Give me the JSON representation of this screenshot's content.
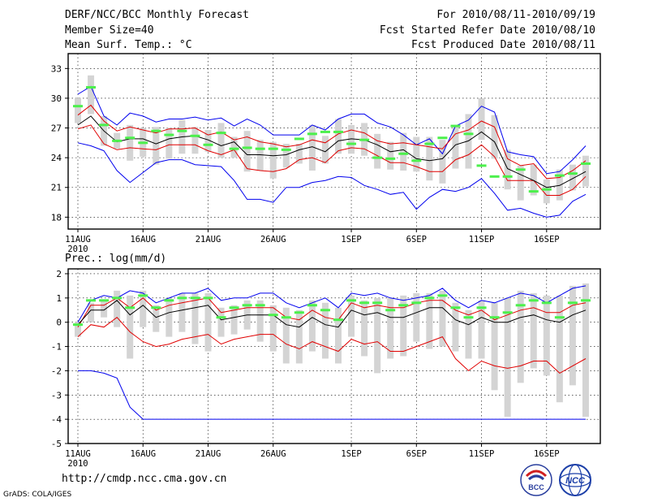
{
  "header": {
    "title": "DERF/NCC/BCC Monthly Forecast",
    "member_size": "Member Size=40",
    "variable": "Mean Surf. Temp.: °C",
    "period": "For 2010/08/11-2010/09/19",
    "fcst_started": "Fcst Started Refer Date 2010/08/10",
    "fcst_produced": "Fcst Produced Date 2010/08/11"
  },
  "footer": {
    "url": "http://cmdp.ncc.cma.gov.cn",
    "grads": "GrADS: COLA/IGES",
    "logo_bcc": "BCC",
    "logo_ncc": "NCC"
  },
  "colors": {
    "box": "#d4d4d4",
    "median": "#4cf04c",
    "mean": "#000000",
    "std_band": "#e00000",
    "extreme": "#0000ee"
  },
  "chart_data": [
    {
      "type": "line",
      "panel": "temperature",
      "title": "Mean Surf. Temp.: °C",
      "x_tick_labels": [
        "11AUG",
        "16AUG",
        "21AUG",
        "26AUG",
        "1SEP",
        "6SEP",
        "11SEP",
        "16SEP"
      ],
      "x_tick_days": [
        0,
        5,
        10,
        15,
        21,
        26,
        31,
        36
      ],
      "year_label": "2010",
      "ylim": [
        16.8,
        34.5
      ],
      "y_ticks": [
        18,
        21,
        24,
        27,
        30,
        33
      ],
      "y_tick_labels": [
        "18",
        "21",
        "24",
        "27",
        "30",
        "33"
      ],
      "grid": true,
      "days": 40,
      "max": [
        30.4,
        31.2,
        28.2,
        27.3,
        28.5,
        28.2,
        27.6,
        27.9,
        27.9,
        28.1,
        27.8,
        28.0,
        27.2,
        27.9,
        27.3,
        26.3,
        26.3,
        26.3,
        27.3,
        26.8,
        27.9,
        28.4,
        28.4,
        27.5,
        27.1,
        26.3,
        25.3,
        25.9,
        24.4,
        27.2,
        27.8,
        29.2,
        28.6,
        24.6,
        24.3,
        24.1,
        22.4,
        22.6,
        23.8,
        25.2
      ],
      "std_hi": [
        28.3,
        29.3,
        27.7,
        26.7,
        27.1,
        26.8,
        26.5,
        26.9,
        26.9,
        27.0,
        26.3,
        26.6,
        25.8,
        26.1,
        25.6,
        25.4,
        25.1,
        25.3,
        25.8,
        25.5,
        26.4,
        26.8,
        26.5,
        25.7,
        25.4,
        25.5,
        25.3,
        25.1,
        24.9,
        26.4,
        26.8,
        27.7,
        27.1,
        23.9,
        23.2,
        23.4,
        21.9,
        22.0,
        22.7,
        23.7
      ],
      "mean": [
        27.3,
        28.2,
        26.7,
        25.6,
        25.9,
        25.9,
        25.4,
        25.9,
        26.1,
        26.2,
        25.8,
        25.2,
        25.6,
        24.3,
        24.3,
        24.2,
        24.3,
        24.8,
        25.1,
        24.6,
        25.7,
        25.9,
        25.8,
        25.3,
        24.6,
        24.8,
        23.9,
        23.7,
        23.9,
        25.3,
        25.7,
        26.6,
        25.6,
        22.9,
        22.3,
        21.7,
        21.0,
        21.2,
        21.9,
        22.6
      ],
      "std_lo": [
        26.9,
        27.3,
        25.4,
        24.8,
        25.0,
        24.9,
        24.8,
        25.3,
        25.3,
        25.3,
        24.7,
        24.3,
        24.8,
        22.9,
        22.7,
        22.6,
        22.9,
        23.8,
        24.0,
        23.5,
        24.7,
        25.0,
        24.9,
        24.2,
        23.5,
        23.5,
        23.1,
        22.6,
        22.6,
        23.8,
        24.3,
        25.3,
        24.1,
        21.7,
        21.7,
        21.7,
        20.2,
        20.2,
        20.8,
        22.1
      ],
      "min": [
        25.5,
        25.2,
        24.7,
        22.7,
        21.5,
        22.5,
        23.5,
        23.8,
        23.8,
        23.3,
        23.2,
        23.1,
        21.7,
        19.8,
        19.8,
        19.5,
        21.0,
        21.0,
        21.5,
        21.7,
        22.1,
        22.0,
        21.2,
        20.8,
        20.3,
        20.5,
        18.8,
        20.0,
        20.8,
        20.6,
        21.0,
        21.9,
        20.4,
        18.7,
        18.9,
        18.4,
        18.0,
        18.2,
        19.6,
        20.3
      ],
      "box_lo": [
        27.5,
        28.4,
        25.2,
        24.9,
        23.7,
        24.1,
        23.3,
        23.9,
        24.4,
        24.4,
        24.6,
        24.0,
        24.0,
        22.6,
        22.7,
        21.9,
        23.0,
        23.4,
        22.7,
        23.4,
        24.4,
        24.4,
        24.2,
        22.9,
        22.8,
        22.7,
        22.6,
        21.7,
        21.4,
        22.9,
        22.9,
        25.8,
        23.9,
        20.8,
        19.7,
        20.2,
        19.4,
        19.7,
        20.7,
        21.1
      ],
      "box_hi": [
        30.0,
        32.3,
        28.2,
        26.5,
        27.3,
        27.0,
        27.1,
        27.0,
        27.8,
        27.1,
        26.8,
        27.5,
        26.1,
        26.7,
        25.8,
        25.6,
        25.4,
        25.4,
        27.3,
        26.2,
        27.9,
        27.3,
        27.5,
        26.4,
        25.6,
        26.5,
        26.1,
        26.1,
        25.8,
        27.3,
        28.4,
        30.0,
        28.3,
        24.8,
        23.2,
        23.3,
        21.8,
        22.8,
        23.3,
        24.2
      ],
      "median": [
        29.2,
        31.1,
        27.3,
        25.7,
        26.0,
        25.5,
        26.7,
        26.3,
        26.7,
        26.2,
        25.3,
        26.5,
        24.9,
        25.0,
        24.9,
        24.9,
        24.8,
        25.9,
        26.4,
        26.6,
        26.6,
        25.4,
        25.8,
        24.0,
        23.9,
        24.4,
        23.7,
        25.4,
        26.0,
        27.2,
        26.4,
        23.2,
        22.1,
        22.1,
        22.8,
        20.6,
        20.8,
        22.2,
        22.4,
        23.4
      ]
    },
    {
      "type": "line",
      "panel": "precipitation",
      "title": "Prec.: log(mm/d)",
      "x_tick_labels": [
        "11AUG",
        "16AUG",
        "21AUG",
        "26AUG",
        "1SEP",
        "6SEP",
        "11SEP",
        "16SEP"
      ],
      "x_tick_days": [
        0,
        5,
        10,
        15,
        21,
        26,
        31,
        36
      ],
      "year_label": "2010",
      "ylim": [
        -5,
        2.2
      ],
      "y_ticks": [
        -5,
        -4,
        -3,
        -2,
        -1,
        0,
        1,
        2
      ],
      "y_tick_labels": [
        "-5",
        "-4",
        "-3",
        "-2",
        "-1",
        "0",
        "1",
        "2"
      ],
      "grid": true,
      "days": 40,
      "max": [
        0.0,
        0.9,
        1.1,
        1.0,
        1.3,
        1.2,
        0.8,
        1.0,
        1.2,
        1.2,
        1.4,
        0.9,
        1.0,
        1.0,
        1.2,
        1.2,
        0.8,
        0.6,
        0.8,
        1.0,
        0.6,
        1.2,
        1.1,
        1.2,
        1.0,
        0.9,
        1.0,
        1.1,
        1.4,
        0.9,
        0.6,
        0.9,
        0.8,
        1.0,
        1.2,
        1.1,
        0.8,
        1.1,
        1.4,
        1.5
      ],
      "std_hi": [
        -0.2,
        0.7,
        0.7,
        1.0,
        0.6,
        1.0,
        0.5,
        0.7,
        0.8,
        0.9,
        1.0,
        0.4,
        0.5,
        0.6,
        0.6,
        0.6,
        0.2,
        0.1,
        0.5,
        0.2,
        0.1,
        0.8,
        0.6,
        0.7,
        0.6,
        0.6,
        0.8,
        0.9,
        0.9,
        0.5,
        0.3,
        0.5,
        0.1,
        0.3,
        0.5,
        0.6,
        0.4,
        0.4,
        0.7,
        0.8
      ],
      "mean": [
        -0.1,
        0.5,
        0.5,
        0.9,
        0.3,
        0.7,
        0.2,
        0.4,
        0.5,
        0.6,
        0.7,
        0.1,
        0.2,
        0.3,
        0.3,
        0.3,
        -0.1,
        -0.2,
        0.2,
        -0.1,
        -0.2,
        0.5,
        0.3,
        0.4,
        0.2,
        0.2,
        0.4,
        0.6,
        0.6,
        0.1,
        -0.1,
        0.2,
        0.0,
        0.0,
        0.2,
        0.3,
        0.1,
        0.0,
        0.3,
        0.5
      ],
      "std_lo": [
        -0.6,
        -0.1,
        -0.2,
        0.2,
        -0.4,
        -0.8,
        -1.0,
        -0.9,
        -0.7,
        -0.6,
        -0.5,
        -0.9,
        -0.7,
        -0.6,
        -0.5,
        -0.5,
        -0.9,
        -1.1,
        -0.8,
        -1.0,
        -1.2,
        -0.7,
        -0.9,
        -0.8,
        -1.2,
        -1.2,
        -1.0,
        -0.8,
        -0.6,
        -1.5,
        -2.0,
        -1.6,
        -1.8,
        -1.9,
        -1.8,
        -1.6,
        -1.6,
        -2.1,
        -1.8,
        -1.5
      ],
      "min": [
        -2.0,
        -2.0,
        -2.1,
        -2.3,
        -3.5,
        -4.0,
        -4.0,
        -4.0,
        -4.0,
        -4.0,
        -4.0,
        -4.0,
        -4.0,
        -4.0,
        -4.0,
        -4.0,
        -4.0,
        -4.0,
        -4.0,
        -4.0,
        -4.0,
        -4.0,
        -4.0,
        -4.0,
        -4.0,
        -4.0,
        -4.0,
        -4.0,
        -4.0,
        -4.0,
        -4.0,
        -4.0,
        -4.0,
        -4.0,
        -4.0,
        -4.0,
        -4.0,
        -4.0,
        -4.0,
        -4.0
      ],
      "box_lo": [
        -0.6,
        0.0,
        0.2,
        -0.2,
        -1.5,
        -0.2,
        -0.4,
        -0.6,
        -0.4,
        -0.9,
        -1.2,
        -0.6,
        -0.5,
        -0.3,
        -0.8,
        -1.2,
        -1.7,
        -1.7,
        -1.2,
        -1.5,
        -1.7,
        -0.6,
        -1.4,
        -2.1,
        -1.5,
        -1.4,
        -0.8,
        -1.1,
        -1.0,
        -1.2,
        -1.5,
        -1.5,
        -2.8,
        -3.9,
        -2.5,
        -1.9,
        -2.2,
        -3.3,
        -2.6,
        -3.9
      ],
      "box_hi": [
        0.0,
        0.8,
        0.9,
        1.3,
        1.1,
        1.3,
        0.7,
        1.0,
        1.2,
        1.2,
        1.2,
        0.6,
        0.7,
        0.9,
        0.9,
        0.7,
        0.6,
        0.5,
        0.9,
        0.8,
        0.6,
        1.1,
        0.9,
        1.0,
        1.0,
        1.1,
        1.2,
        1.2,
        1.3,
        0.8,
        0.5,
        0.9,
        0.8,
        1.0,
        1.3,
        1.2,
        1.1,
        1.1,
        1.5,
        1.6
      ],
      "median": [
        -0.1,
        0.9,
        0.9,
        1.0,
        0.6,
        1.1,
        0.6,
        0.9,
        1.0,
        1.0,
        1.0,
        0.2,
        0.6,
        0.7,
        0.7,
        0.3,
        0.2,
        0.4,
        0.7,
        0.5,
        0.1,
        0.9,
        0.8,
        0.8,
        0.5,
        0.7,
        0.8,
        1.0,
        1.1,
        0.6,
        0.2,
        0.6,
        0.2,
        0.4,
        0.7,
        0.9,
        0.8,
        0.2,
        0.8,
        0.9
      ]
    }
  ]
}
